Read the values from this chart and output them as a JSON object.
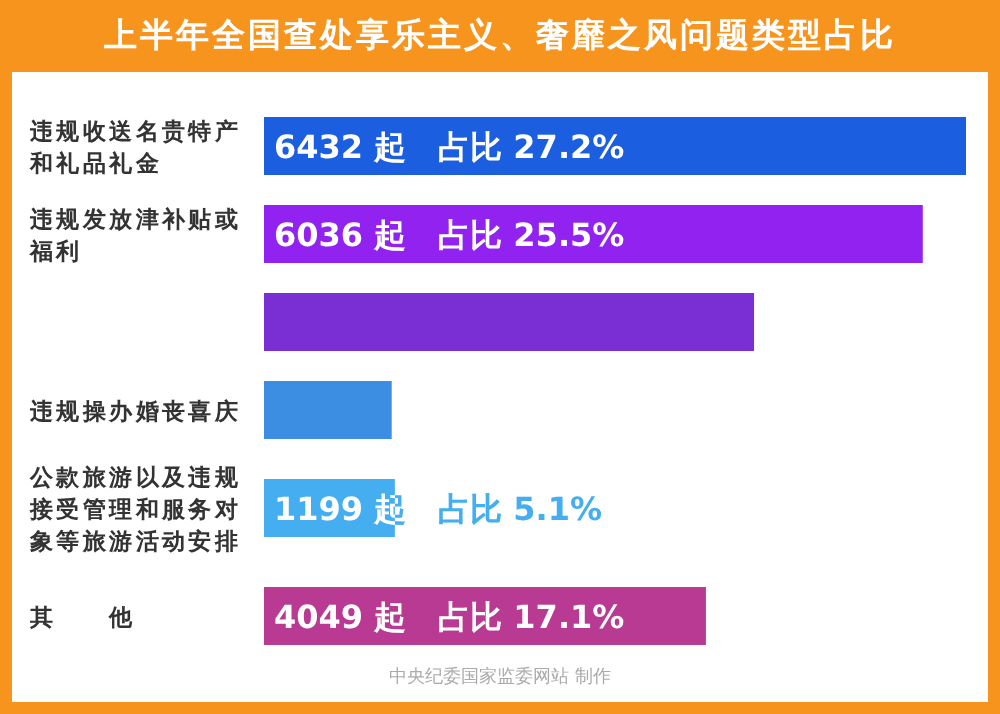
{
  "chart_data": {
    "type": "bar",
    "orientation": "horizontal",
    "title": "上半年全国查处享乐主义、奢靡之风问题类型占比",
    "categories": [
      "违规收送名贵特产和礼品礼金",
      "违规发放津补贴或福利",
      null,
      "违规操办婚丧喜庆",
      "公款旅游以及违规接受管理和服务对象等旅游活动安排",
      "其　　他"
    ],
    "values": [
      6432,
      6036,
      4490,
      1170,
      1199,
      4049
    ],
    "colors": [
      "#1b5fe0",
      "#9222f0",
      "#7a2fd4",
      "#3b8ee2",
      "#45aef0",
      "#b83a92"
    ],
    "value_labels": [
      "6432 起　占比 27.2%",
      "6036 起　占比 25.5%",
      null,
      null,
      "1199 起　占比 5.1%",
      "4049 起　占比 17.1%"
    ],
    "annotations": [
      "中央纪委国家监委网站 制作"
    ]
  }
}
